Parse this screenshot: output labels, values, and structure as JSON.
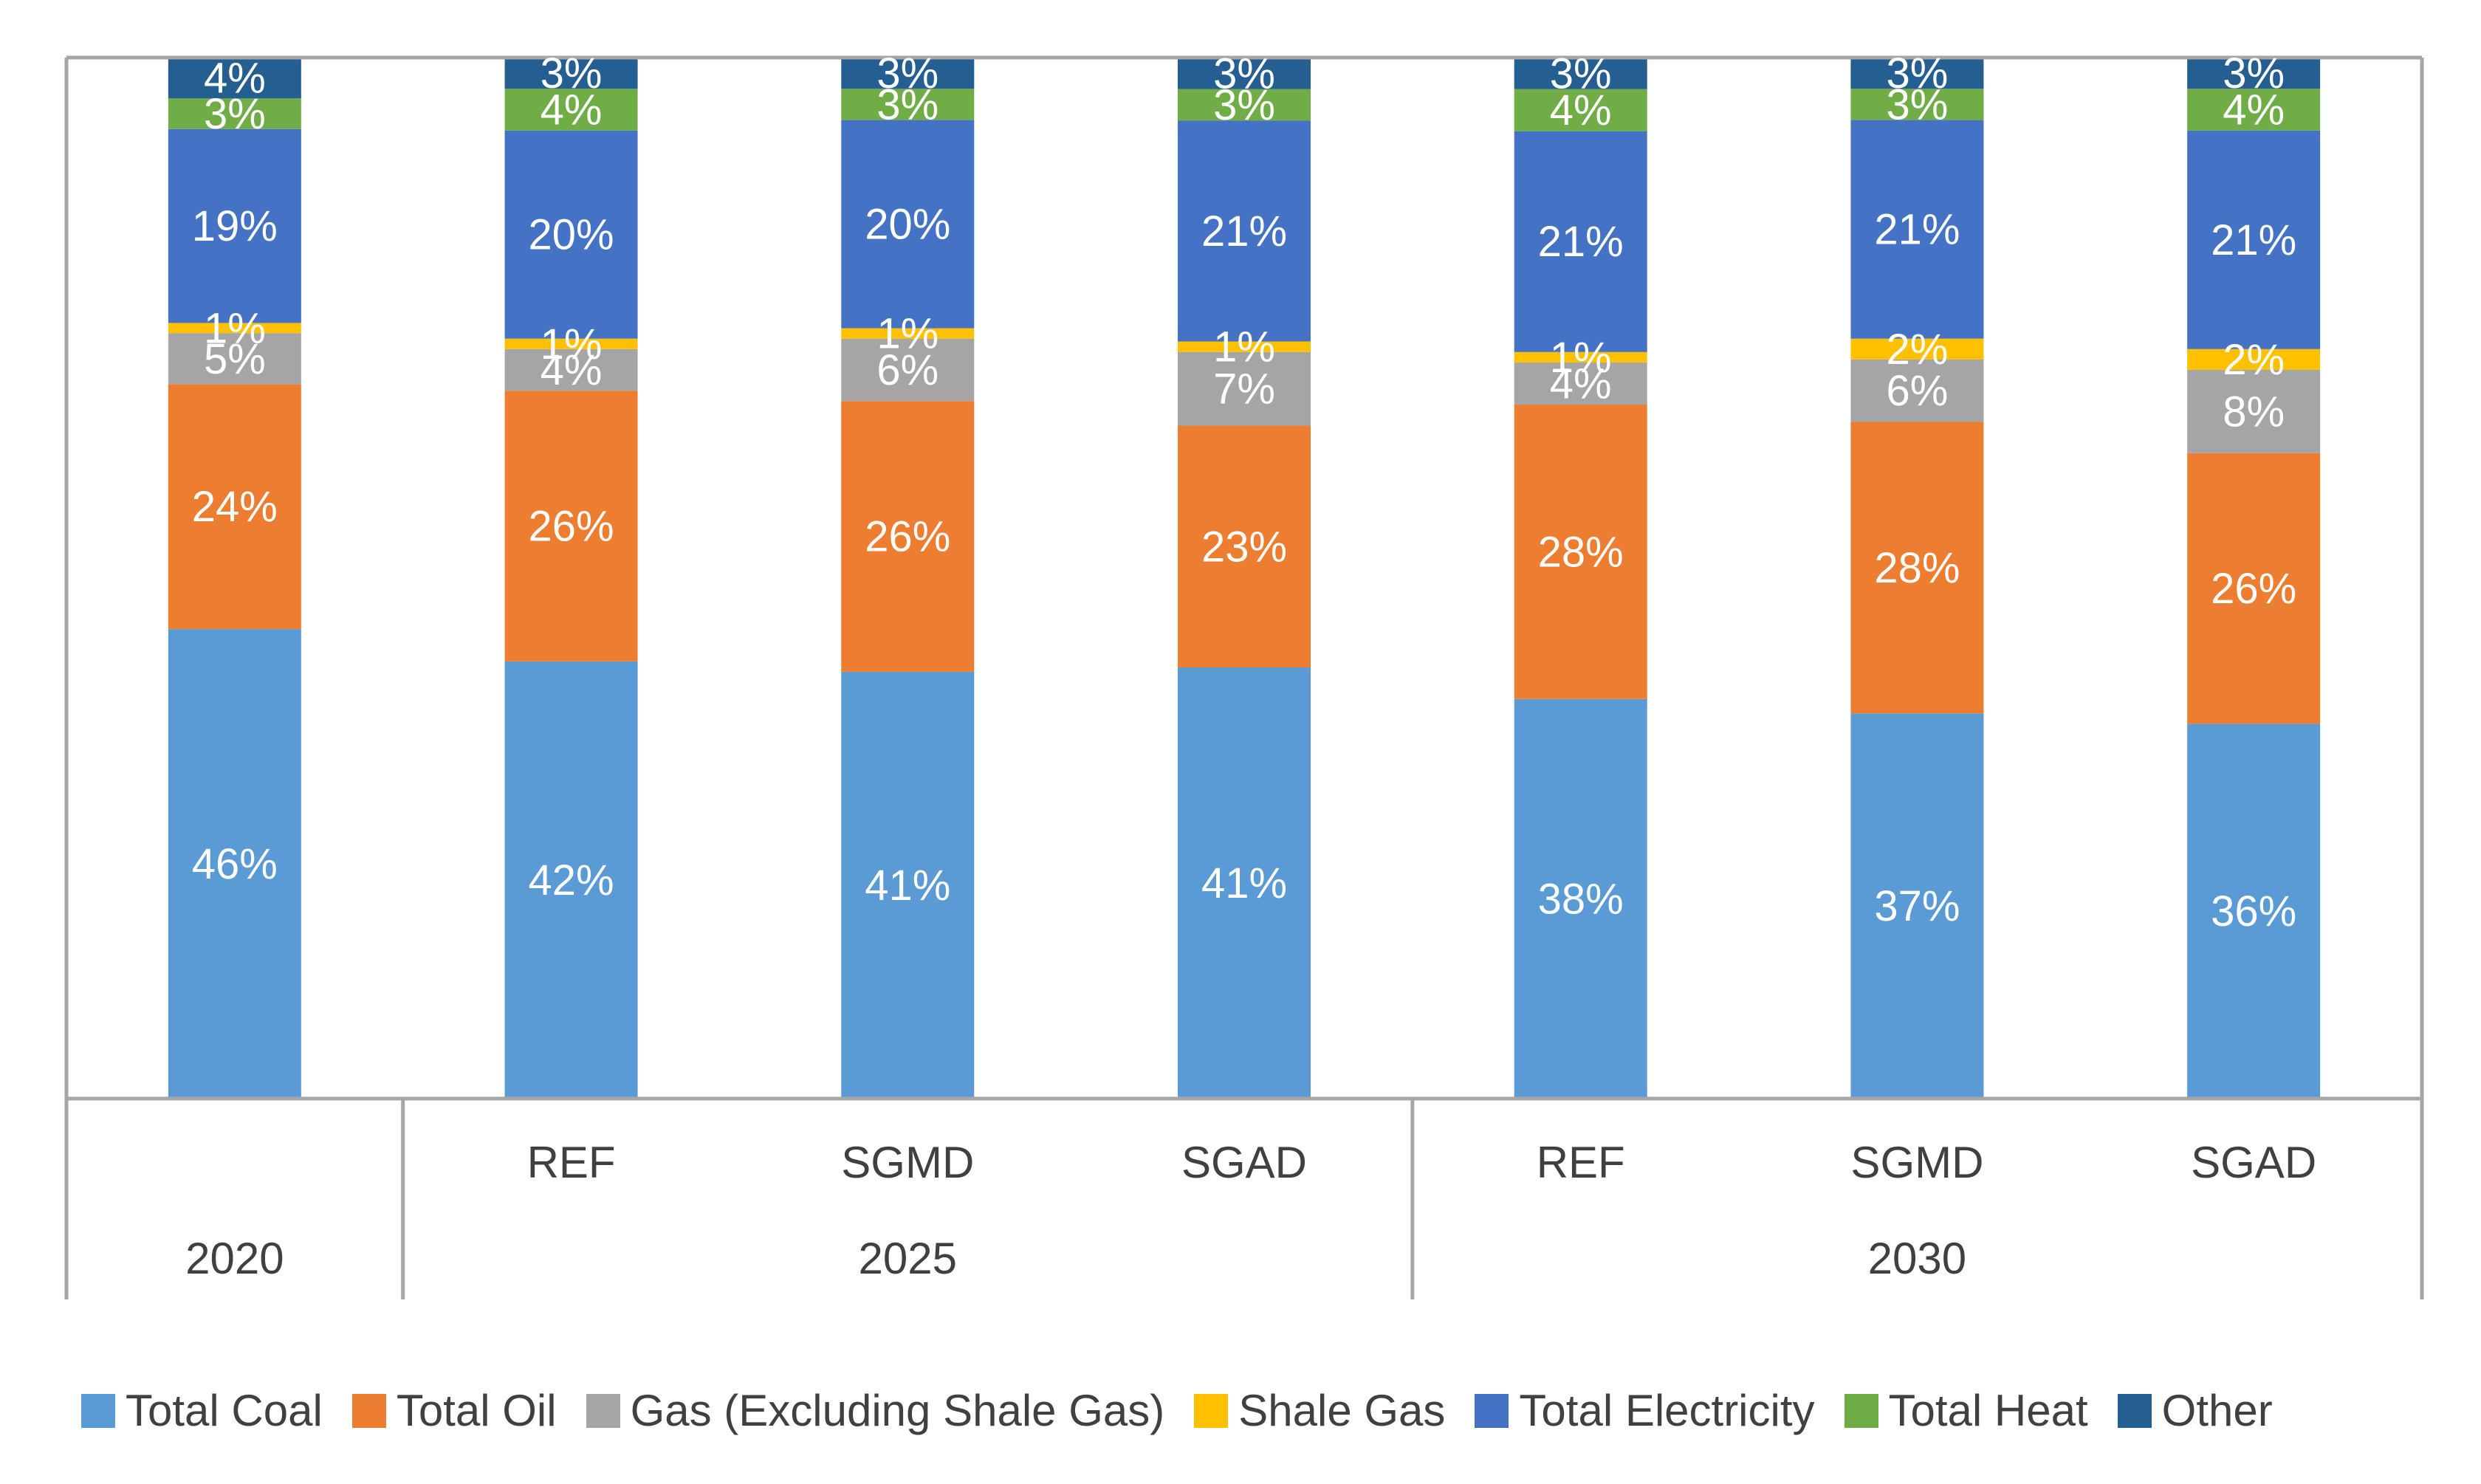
{
  "chart_data": {
    "type": "bar",
    "stacked": true,
    "percent_stacked": true,
    "categories": [
      "2020",
      "REF",
      "SGMD",
      "SGAD",
      "REF",
      "SGMD",
      "SGAD"
    ],
    "category_groups": [
      {
        "label": "2020",
        "span": [
          0,
          0
        ]
      },
      {
        "label": "2025",
        "span": [
          1,
          3
        ]
      },
      {
        "label": "2030",
        "span": [
          4,
          6
        ]
      }
    ],
    "series": [
      {
        "name": "Total Coal",
        "color": "#5b9bd5",
        "values": [
          46,
          42,
          41,
          41,
          38,
          37,
          36
        ]
      },
      {
        "name": "Total Oil",
        "color": "#ed7d31",
        "values": [
          24,
          26,
          26,
          23,
          28,
          28,
          26
        ]
      },
      {
        "name": "Gas (Excluding Shale Gas)",
        "color": "#a5a5a5",
        "values": [
          5,
          4,
          6,
          7,
          4,
          6,
          8
        ]
      },
      {
        "name": "Shale Gas",
        "color": "#ffc000",
        "values": [
          1,
          1,
          1,
          1,
          1,
          2,
          2
        ]
      },
      {
        "name": "Total Electricity",
        "color": "#4472c4",
        "values": [
          19,
          20,
          20,
          21,
          21,
          21,
          21
        ]
      },
      {
        "name": "Total Heat",
        "color": "#70ad47",
        "values": [
          3,
          4,
          3,
          3,
          4,
          3,
          4
        ]
      },
      {
        "name": "Other",
        "color": "#255e91",
        "values": [
          4,
          3,
          3,
          3,
          3,
          3,
          3
        ]
      }
    ],
    "value_suffix": "%",
    "title": "",
    "xlabel": "",
    "ylabel": "",
    "ylim": [
      0,
      100
    ],
    "grid": false,
    "legend_position": "bottom"
  }
}
